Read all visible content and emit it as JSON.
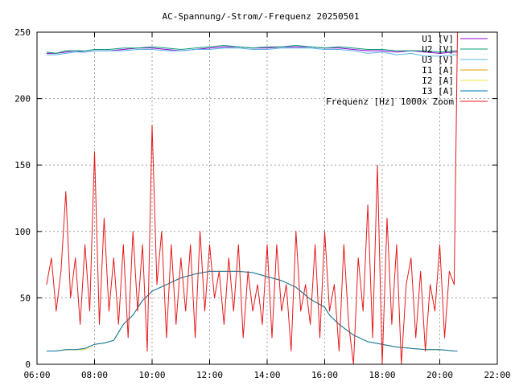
{
  "chart_data": {
    "type": "line",
    "title": "AC-Spannung/-Strom/-Frequenz 20250501",
    "xlabel": "",
    "ylabel": "",
    "xlim": [
      "06:00",
      "22:00"
    ],
    "ylim": [
      0,
      250
    ],
    "grid": true,
    "legend_position": "top-right",
    "x_tick_labels": [
      "06:00",
      "08:00",
      "10:00",
      "12:00",
      "14:00",
      "16:00",
      "18:00",
      "20:00",
      "22:00"
    ],
    "y_tick_labels": [
      "0",
      "50",
      "100",
      "150",
      "200",
      "250"
    ],
    "series": [
      {
        "name": "U1 [V]",
        "color": "#9400d3",
        "x": [
          "06:20",
          "06:40",
          "07:00",
          "07:20",
          "07:40",
          "08:00",
          "08:30",
          "09:00",
          "09:30",
          "10:00",
          "10:30",
          "11:00",
          "11:30",
          "12:00",
          "12:30",
          "13:00",
          "13:30",
          "14:00",
          "14:30",
          "15:00",
          "15:30",
          "16:00",
          "16:30",
          "17:00",
          "17:30",
          "18:00",
          "18:30",
          "19:00",
          "19:30",
          "20:00",
          "20:30",
          "20:37"
        ],
        "values": [
          234,
          234,
          235,
          236,
          235,
          236,
          236,
          237,
          238,
          238,
          237,
          236,
          237,
          238,
          239,
          239,
          238,
          238,
          239,
          239,
          239,
          238,
          238,
          237,
          236,
          236,
          235,
          236,
          235,
          234,
          235,
          235
        ]
      },
      {
        "name": "U2 [V]",
        "color": "#009e73",
        "x": [
          "06:20",
          "06:40",
          "07:00",
          "07:20",
          "07:40",
          "08:00",
          "08:30",
          "09:00",
          "09:30",
          "10:00",
          "10:30",
          "11:00",
          "11:30",
          "12:00",
          "12:30",
          "13:00",
          "13:30",
          "14:00",
          "14:30",
          "15:00",
          "15:30",
          "16:00",
          "16:30",
          "17:00",
          "17:30",
          "18:00",
          "18:30",
          "19:00",
          "19:30",
          "20:00",
          "20:30",
          "20:37"
        ],
        "values": [
          235,
          234,
          236,
          236,
          236,
          237,
          237,
          238,
          238,
          239,
          238,
          237,
          238,
          239,
          240,
          239,
          238,
          239,
          239,
          240,
          239,
          238,
          239,
          238,
          237,
          237,
          236,
          236,
          236,
          235,
          236,
          236
        ]
      },
      {
        "name": "U3 [V]",
        "color": "#56b4e9",
        "x": [
          "06:20",
          "06:40",
          "07:00",
          "07:20",
          "07:40",
          "08:00",
          "08:30",
          "09:00",
          "09:30",
          "10:00",
          "10:30",
          "11:00",
          "11:30",
          "12:00",
          "12:30",
          "13:00",
          "13:30",
          "14:00",
          "14:30",
          "15:00",
          "15:30",
          "16:00",
          "16:30",
          "17:00",
          "17:30",
          "18:00",
          "18:30",
          "19:00",
          "19:30",
          "20:00",
          "20:30",
          "20:37"
        ],
        "values": [
          233,
          233,
          234,
          235,
          235,
          236,
          236,
          236,
          237,
          237,
          236,
          236,
          237,
          237,
          238,
          238,
          237,
          237,
          238,
          238,
          238,
          237,
          237,
          236,
          234,
          235,
          233,
          234,
          232,
          232,
          233,
          233
        ]
      },
      {
        "name": "I1 [A]",
        "color": "#e69f00",
        "x": [
          "06:20",
          "06:40",
          "07:00",
          "07:20",
          "07:40",
          "08:00",
          "08:20",
          "08:40",
          "09:00",
          "09:20",
          "09:40",
          "10:00",
          "10:30",
          "11:00",
          "11:30",
          "12:00",
          "12:30",
          "13:00",
          "13:30",
          "14:00",
          "14:30",
          "15:00",
          "15:30",
          "16:00",
          "16:10",
          "16:30",
          "17:00",
          "17:30",
          "18:00",
          "18:30",
          "19:00",
          "19:30",
          "20:00",
          "20:30",
          "20:37"
        ],
        "values": [
          10,
          10,
          11,
          11,
          11,
          15,
          16,
          18,
          30,
          37,
          48,
          55,
          60,
          65,
          68,
          70,
          70,
          70,
          69,
          66,
          63,
          58,
          49,
          43,
          37,
          30,
          22,
          17,
          15,
          13,
          12,
          11,
          11,
          10,
          10
        ]
      },
      {
        "name": "I2 [A]",
        "color": "#f0e442",
        "x": [
          "06:20",
          "06:40",
          "07:00",
          "07:20",
          "07:40",
          "08:00",
          "08:20",
          "08:40",
          "09:00",
          "09:20",
          "09:40",
          "10:00",
          "10:30",
          "11:00",
          "11:30",
          "12:00",
          "12:30",
          "13:00",
          "13:30",
          "14:00",
          "14:30",
          "15:00",
          "15:30",
          "16:00",
          "16:10",
          "16:30",
          "17:00",
          "17:30",
          "18:00",
          "18:30",
          "19:00",
          "19:30",
          "20:00",
          "20:30",
          "20:37"
        ],
        "values": [
          10,
          10,
          11,
          11,
          11,
          15,
          16,
          18,
          30,
          37,
          48,
          55,
          60,
          65,
          68,
          70,
          70,
          70,
          69,
          66,
          63,
          58,
          49,
          43,
          37,
          30,
          22,
          17,
          15,
          13,
          12,
          11,
          11,
          10,
          10
        ]
      },
      {
        "name": "I3 [A]",
        "color": "#0072b2",
        "x": [
          "06:20",
          "06:40",
          "07:00",
          "07:20",
          "07:40",
          "08:00",
          "08:20",
          "08:40",
          "09:00",
          "09:20",
          "09:40",
          "10:00",
          "10:30",
          "11:00",
          "11:30",
          "12:00",
          "12:30",
          "13:00",
          "13:30",
          "14:00",
          "14:30",
          "15:00",
          "15:30",
          "16:00",
          "16:10",
          "16:30",
          "17:00",
          "17:30",
          "18:00",
          "18:30",
          "19:00",
          "19:30",
          "20:00",
          "20:30",
          "20:37"
        ],
        "values": [
          10,
          10,
          11,
          11,
          12,
          15,
          16,
          18,
          30,
          37,
          48,
          55,
          60,
          65,
          68,
          70,
          70,
          70,
          69,
          66,
          63,
          58,
          49,
          43,
          37,
          30,
          22,
          17,
          15,
          13,
          12,
          11,
          11,
          10,
          10
        ]
      },
      {
        "name": "Frequenz [Hz] 1000x Zoom",
        "color": "#e41a1c",
        "x": [
          "06:20",
          "06:30",
          "06:40",
          "06:50",
          "07:00",
          "07:10",
          "07:20",
          "07:30",
          "07:40",
          "07:50",
          "08:00",
          "08:10",
          "08:20",
          "08:30",
          "08:40",
          "08:50",
          "09:00",
          "09:10",
          "09:20",
          "09:30",
          "09:40",
          "09:50",
          "10:00",
          "10:10",
          "10:20",
          "10:30",
          "10:40",
          "10:50",
          "11:00",
          "11:10",
          "11:20",
          "11:30",
          "11:40",
          "11:50",
          "12:00",
          "12:10",
          "12:20",
          "12:30",
          "12:40",
          "12:50",
          "13:00",
          "13:10",
          "13:20",
          "13:30",
          "13:40",
          "13:50",
          "14:00",
          "14:10",
          "14:20",
          "14:30",
          "14:40",
          "14:50",
          "15:00",
          "15:10",
          "15:20",
          "15:30",
          "15:40",
          "15:50",
          "16:00",
          "16:10",
          "16:20",
          "16:30",
          "16:40",
          "16:50",
          "17:00",
          "17:10",
          "17:20",
          "17:30",
          "17:40",
          "17:50",
          "18:00",
          "18:10",
          "18:20",
          "18:30",
          "18:40",
          "18:50",
          "19:00",
          "19:10",
          "19:20",
          "19:30",
          "19:40",
          "19:50",
          "20:00",
          "20:10",
          "20:20",
          "20:30",
          "20:37"
        ],
        "values": [
          60,
          80,
          40,
          70,
          130,
          50,
          80,
          30,
          90,
          40,
          160,
          30,
          110,
          40,
          80,
          30,
          90,
          20,
          100,
          40,
          90,
          10,
          180,
          60,
          100,
          20,
          90,
          30,
          80,
          40,
          90,
          20,
          100,
          40,
          90,
          50,
          70,
          30,
          80,
          40,
          90,
          20,
          70,
          40,
          60,
          30,
          90,
          20,
          90,
          40,
          60,
          10,
          100,
          40,
          60,
          30,
          90,
          20,
          100,
          40,
          60,
          10,
          90,
          30,
          0,
          80,
          40,
          120,
          20,
          150,
          0,
          110,
          30,
          90,
          0,
          60,
          80,
          20,
          70,
          10,
          60,
          40,
          90,
          20,
          70,
          60,
          250
        ]
      }
    ]
  }
}
